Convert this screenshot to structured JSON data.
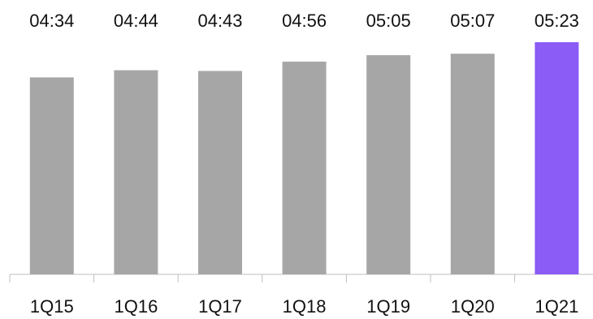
{
  "chart_data": {
    "type": "bar",
    "categories": [
      "1Q15",
      "1Q16",
      "1Q17",
      "1Q18",
      "1Q19",
      "1Q20",
      "1Q21"
    ],
    "values": [
      "04:34",
      "04:44",
      "04:43",
      "04:56",
      "05:05",
      "05:07",
      "05:23"
    ],
    "data_labels": [
      "04:34",
      "04:44",
      "04:43",
      "04:56",
      "05:05",
      "05:07",
      "05:23"
    ],
    "title": "",
    "xlabel": "",
    "ylabel": "",
    "bar_colors": [
      "#a6a6a6",
      "#a6a6a6",
      "#a6a6a6",
      "#a6a6a6",
      "#a6a6a6",
      "#a6a6a6",
      "#8b5cf6"
    ],
    "axis_color": "#bfbfbf",
    "label_color": "#111111",
    "grid": false,
    "legend": "none",
    "value_axis_visible": false
  }
}
